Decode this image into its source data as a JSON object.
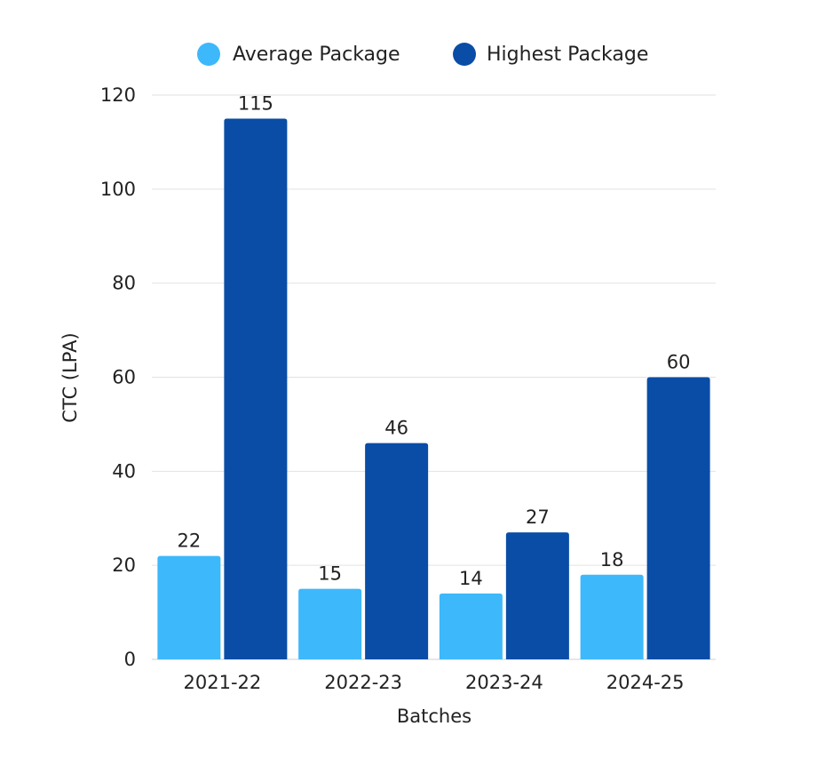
{
  "chart_data": {
    "type": "bar",
    "title": "",
    "xlabel": "Batches",
    "ylabel": "CTC (LPA)",
    "categories": [
      "2021-22",
      "2022-23",
      "2023-24",
      "2024-25"
    ],
    "series": [
      {
        "name": "Average Package",
        "values": [
          22,
          15,
          14,
          18
        ],
        "color": "#3db8fb"
      },
      {
        "name": "Highest Package",
        "values": [
          115,
          46,
          27,
          60
        ],
        "color": "#0a4da6"
      }
    ],
    "ylim": [
      0,
      120
    ],
    "yticks": [
      0,
      20,
      40,
      60,
      80,
      100,
      120
    ],
    "grid": true,
    "legend": "top-center"
  }
}
